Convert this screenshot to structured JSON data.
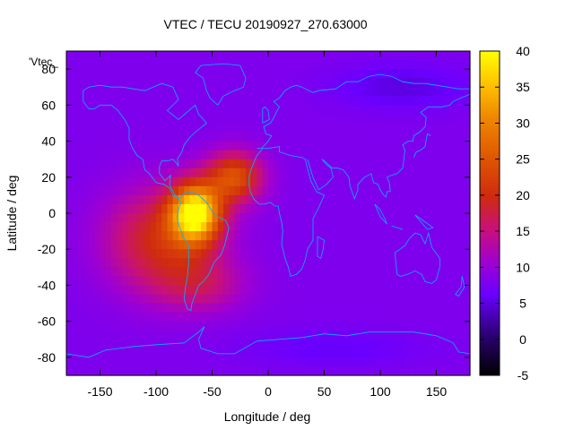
{
  "chart_data": {
    "type": "heatmap",
    "title": "VTEC / TECU 20190927_270.63000",
    "xlabel": "Longitude / deg",
    "ylabel": "Latitude / deg",
    "xlim": [
      -180,
      180
    ],
    "ylim": [
      -90,
      90
    ],
    "x_ticks": [
      -150,
      -100,
      -50,
      0,
      50,
      100,
      150
    ],
    "y_ticks": [
      -80,
      -60,
      -40,
      -20,
      0,
      20,
      40,
      60,
      80
    ],
    "colorbar": {
      "range": [
        -5,
        40
      ],
      "ticks": [
        -5,
        0,
        5,
        10,
        15,
        20,
        25,
        30,
        35,
        40
      ],
      "palette": "gnuplot black-blue-purple-red-orange-yellow"
    },
    "legend_label": "'Vtec_",
    "overlay": "coastlines",
    "grid": {
      "lon_start": -180,
      "lon_step": 5,
      "lon_count": 72,
      "lat_start": 87.5,
      "lat_step": -5,
      "lat_count": 36
    },
    "features": {
      "background_tecu": 8,
      "peaks": [
        {
          "lon": -65,
          "lat": 0,
          "tecu": 40
        },
        {
          "lon": -30,
          "lat": 20,
          "tecu": 30
        },
        {
          "lon": -95,
          "lat": -15,
          "tecu": 22
        }
      ]
    }
  },
  "colors": {
    "background": "#ffffff",
    "coastline": "#00b3ff",
    "frame": "#000000"
  }
}
